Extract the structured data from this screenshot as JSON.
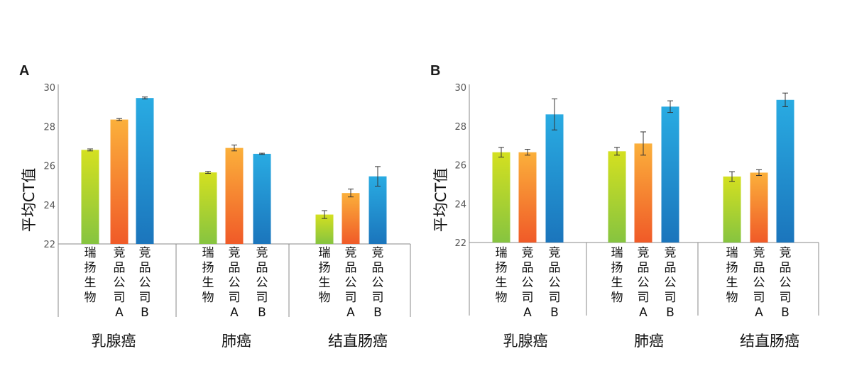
{
  "chart_data": [
    {
      "panel": "A",
      "type": "bar",
      "ylabel": "平均CT值",
      "ylim": [
        22,
        30
      ],
      "yticks": [
        22,
        24,
        26,
        28,
        30
      ],
      "groups": [
        "乳腺癌",
        "肺癌",
        "结直肠癌"
      ],
      "categories": [
        "瑞扬生物",
        "竞品公司A",
        "竞品公司B"
      ],
      "series": [
        {
          "name": "瑞扬生物",
          "values": [
            26.8,
            25.65,
            23.5
          ],
          "errors": [
            0.05,
            0.05,
            0.2
          ]
        },
        {
          "name": "竞品公司A",
          "values": [
            28.35,
            26.9,
            24.6
          ],
          "errors": [
            0.05,
            0.15,
            0.2
          ]
        },
        {
          "name": "竞品公司B",
          "values": [
            29.45,
            26.6,
            25.45
          ],
          "errors": [
            0.05,
            0.03,
            0.5
          ]
        }
      ]
    },
    {
      "panel": "B",
      "type": "bar",
      "ylabel": "平均CT值",
      "ylim": [
        22,
        30
      ],
      "yticks": [
        22,
        24,
        26,
        28,
        30
      ],
      "groups": [
        "乳腺癌",
        "肺癌",
        "结直肠癌"
      ],
      "categories": [
        "瑞扬生物",
        "竞品公司A",
        "竞品公司B"
      ],
      "series": [
        {
          "name": "瑞扬生物",
          "values": [
            26.65,
            26.7,
            25.4
          ],
          "errors": [
            0.25,
            0.2,
            0.25
          ]
        },
        {
          "name": "竞品公司A",
          "values": [
            26.65,
            27.1,
            25.6
          ],
          "errors": [
            0.15,
            0.6,
            0.15
          ]
        },
        {
          "name": "竞品公司B",
          "values": [
            28.6,
            29.0,
            29.35
          ],
          "errors": [
            0.8,
            0.3,
            0.35
          ]
        }
      ]
    }
  ],
  "colors": {
    "green_top": "#d4e020",
    "green_bottom": "#86c440",
    "orange_top": "#fbb03b",
    "orange_bottom": "#f05a28",
    "blue_top": "#29abe2",
    "blue_bottom": "#1b75bc"
  }
}
